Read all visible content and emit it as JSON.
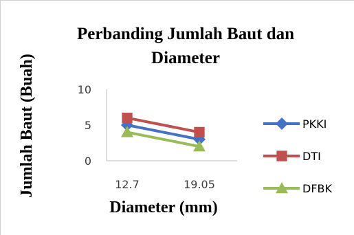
{
  "chart_data": {
    "type": "line",
    "title_line1": "Perbanding Jumlah Baut dan",
    "title_line2": "Diameter",
    "xlabel": "Diameter (mm)",
    "ylabel": "Jumlah Baut  (Buah)",
    "categories": [
      "12.7",
      "19.05"
    ],
    "ylim": [
      0,
      10
    ],
    "yticks": [
      0,
      5,
      10
    ],
    "grid": false,
    "legend": "right",
    "series": [
      {
        "name": "PKKI",
        "values": [
          5,
          3
        ],
        "color": "#4472c4",
        "marker": "diamond"
      },
      {
        "name": "DTI",
        "values": [
          6,
          4
        ],
        "color": "#c0504d",
        "marker": "square"
      },
      {
        "name": "DFBK",
        "values": [
          4,
          2
        ],
        "color": "#9bbb59",
        "marker": "triangle"
      }
    ]
  }
}
